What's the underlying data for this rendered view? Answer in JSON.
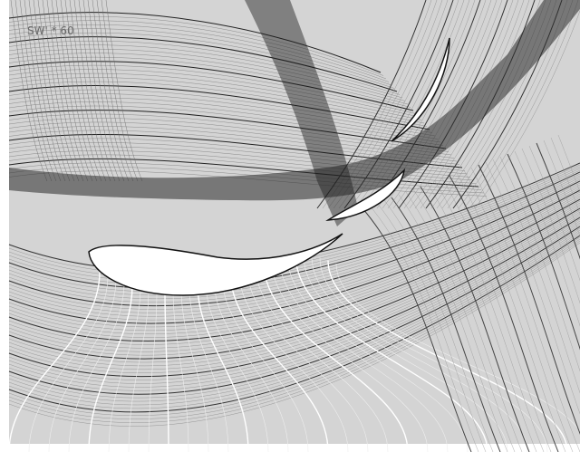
{
  "overlay_label": "SW' * 60"
}
